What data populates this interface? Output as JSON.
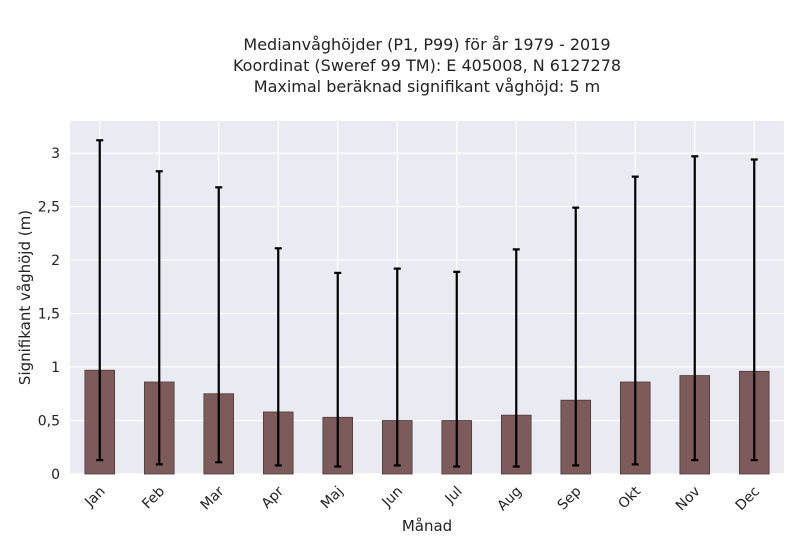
{
  "chart_data": {
    "type": "bar",
    "title_lines": [
      "Medianvåghöjder (P1, P99) för år 1979 - 2019",
      "Koordinat (Sweref 99 TM): E 405008, N 6127278",
      "Maximal beräknad signifikant våghöjd: 5 m"
    ],
    "xlabel": "Månad",
    "ylabel": "Signifikant våghöjd (m)",
    "categories": [
      "Jan",
      "Feb",
      "Mar",
      "Apr",
      "Maj",
      "Jun",
      "Jul",
      "Aug",
      "Sep",
      "Okt",
      "Nov",
      "Dec"
    ],
    "values": [
      0.97,
      0.86,
      0.75,
      0.58,
      0.53,
      0.5,
      0.5,
      0.55,
      0.69,
      0.86,
      0.92,
      0.96
    ],
    "error_low": [
      0.13,
      0.09,
      0.11,
      0.08,
      0.07,
      0.08,
      0.07,
      0.07,
      0.08,
      0.09,
      0.13,
      0.13
    ],
    "error_high": [
      3.12,
      2.83,
      2.68,
      2.11,
      1.88,
      1.92,
      1.89,
      2.1,
      2.49,
      2.78,
      2.97,
      2.94
    ],
    "ylim": [
      0,
      3.3
    ],
    "yticks": [
      0,
      0.5,
      1,
      1.5,
      2,
      2.5,
      3
    ],
    "ytick_labels": [
      "0",
      "0,5",
      "1",
      "1,5",
      "2",
      "2,5",
      "3"
    ],
    "grid": true,
    "colors": {
      "bar": "#7d5b5b",
      "bar_edge": "#4a3a3a",
      "error": "#000000",
      "plot_bg": "#eaeaf2",
      "grid": "#ffffff",
      "text": "#222222"
    }
  }
}
